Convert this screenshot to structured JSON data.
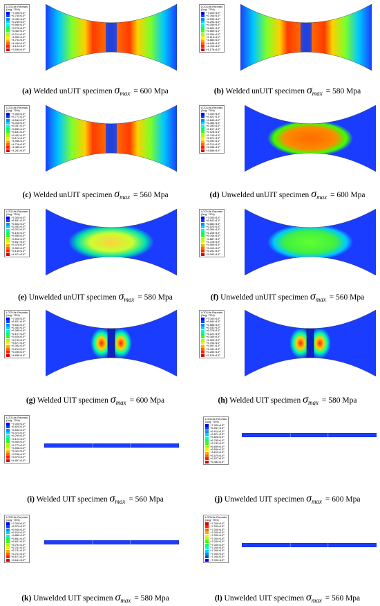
{
  "figure": {
    "legend_title": [
      "LOGLife-Repeats",
      "(Avg: 75%)"
    ],
    "sigma_symbol": "σ",
    "sigma_subscript": "max",
    "panels": [
      {
        "id": "a",
        "label": "(a)",
        "text": "Welded unUIT specimen",
        "stress": "= 600 Mpa",
        "legend": [
          "+7.000×10⁰",
          "+6.745×10⁰",
          "+6.490×10⁰",
          "+6.235×10⁰",
          "+5.980×10⁰",
          "+5.725×10⁰",
          "+5.469×10⁰",
          "+5.214×10⁰",
          "+4.959×10⁰",
          "+4.704×10⁰",
          "+4.449×10⁰",
          "+4.194×10⁰",
          "+3.939×10⁰"
        ]
      },
      {
        "id": "b",
        "label": "(b)",
        "text": "Welded unUIT specimen",
        "stress": "= 580 Mpa",
        "legend": [
          "+7.000×10⁰",
          "+6.765×10⁰",
          "+6.530×10⁰",
          "+6.294×10⁰",
          "+6.059×10⁰",
          "+5.824×10⁰",
          "+5.589×10⁰",
          "+5.354×10⁰",
          "+5.119×10⁰",
          "+4.883×10⁰",
          "+4.648×10⁰",
          "+4.413×10⁰",
          "+4.178×10⁰"
        ]
      },
      {
        "id": "c",
        "label": "(c)",
        "text": "Welded unUIT specimen",
        "stress": "= 560 Mpa",
        "legend": [
          "+7.000×10⁰",
          "+6.772×10⁰",
          "+6.544×10⁰",
          "+6.315×10⁰",
          "+6.087×10⁰",
          "+5.859×10⁰",
          "+5.631×10⁰",
          "+5.402×10⁰",
          "+5.174×10⁰",
          "+4.946×10⁰",
          "+4.718×10⁰",
          "+4.489×10⁰",
          "+4.261×10⁰"
        ]
      },
      {
        "id": "d",
        "label": "(d)",
        "text": "Unwelded unUIT specimen",
        "stress": "= 600 Mpa",
        "legend": [
          "+7.000×10⁰",
          "+6.821×10⁰",
          "+6.643×10⁰",
          "+6.464×10⁰",
          "+6.285×10⁰",
          "+6.107×10⁰",
          "+5.928×10⁰",
          "+5.749×10⁰",
          "+5.571×10⁰",
          "+5.392×10⁰",
          "+5.213×10⁰",
          "+5.035×10⁰",
          "+4.856×10⁰"
        ]
      },
      {
        "id": "e",
        "label": "(e)",
        "text": "Unwelded unUIT specimen",
        "stress": "= 580 Mpa",
        "legend": [
          "+7.000×10⁰",
          "+6.831×10⁰",
          "+6.662×10⁰",
          "+6.493×10⁰",
          "+6.323×10⁰",
          "+6.154×10⁰",
          "+5.985×10⁰",
          "+5.816×10⁰",
          "+5.647×10⁰",
          "+5.478×10⁰",
          "+5.309×10⁰",
          "+5.140×10⁰",
          "+4.971×10⁰"
        ]
      },
      {
        "id": "f",
        "label": "(f)",
        "text": "Unwelded unUIT specimen",
        "stress": "= 560 Mpa",
        "legend": [
          "+7.000×10⁰",
          "+6.841×10⁰",
          "+6.682×10⁰",
          "+6.523×10⁰",
          "+6.364×10⁰",
          "+6.205×10⁰",
          "+6.046×10⁰",
          "+5.887×10⁰",
          "+5.728×10⁰",
          "+5.569×10⁰",
          "+5.410×10⁰",
          "+5.251×10⁰",
          "+5.092×10⁰"
        ]
      },
      {
        "id": "g",
        "label": "(g)",
        "text": "Welded UIT specimen",
        "stress": "= 600 Mpa",
        "legend": [
          "+7.000×10⁰",
          "+6.821×10⁰",
          "+6.643×10⁰",
          "+6.464×10⁰",
          "+6.285×10⁰",
          "+6.107×10⁰",
          "+5.928×10⁰",
          "+5.749×10⁰",
          "+5.571×10⁰",
          "+5.392×10⁰",
          "+5.213×10⁰",
          "+5.035×10⁰",
          "+4.856×10⁰"
        ]
      },
      {
        "id": "h",
        "label": "(h)",
        "text": "Welded UIT specimen",
        "stress": "= 580 Mpa",
        "legend": [
          "+7.000×10⁰",
          "+6.844×10⁰",
          "+6.688×10⁰",
          "+6.532×10⁰",
          "+6.376×10⁰",
          "+6.221×10⁰",
          "+6.065×10⁰",
          "+5.909×10⁰",
          "+5.753×10⁰",
          "+5.597×10⁰",
          "+5.441×10⁰",
          "+5.285×10⁰",
          "+5.129×10⁰"
        ]
      },
      {
        "id": "i",
        "label": "(i)",
        "text": "Welded UIT specimen",
        "stress": "= 560 Mpa",
        "legend": [
          "+7.000×10⁰",
          "+6.825×10⁰",
          "+6.650×10⁰",
          "+6.474×10⁰",
          "+6.299×10⁰",
          "+6.124×10⁰",
          "+5.949×10⁰",
          "+5.773×10⁰",
          "+5.598×10⁰",
          "+5.423×10⁰",
          "+5.248×10⁰",
          "+5.073×10⁰",
          "+4.897×10⁰"
        ]
      },
      {
        "id": "j",
        "label": "(j)",
        "text": "Unwelded UIT specimen",
        "stress": "= 600 Mpa",
        "legend": [
          "+7.000×10⁰",
          "+6.957×10⁰",
          "+6.914×10⁰",
          "+6.871×10⁰",
          "+6.828×10⁰",
          "+6.785×10⁰",
          "+6.742×10⁰",
          "+6.699×10⁰",
          "+6.656×10⁰",
          "+6.613×10⁰",
          "+6.570×10⁰",
          "+6.527×10⁰",
          "+6.484×10⁰"
        ]
      },
      {
        "id": "k",
        "label": "(k)",
        "text": "Unwelded UIT specimen",
        "stress": "= 580 Mpa",
        "legend": [
          "+7.000×10⁰",
          "+6.970×10⁰",
          "+6.940×10⁰",
          "+6.910×10⁰",
          "+6.880×10⁰",
          "+6.851×10⁰",
          "+6.821×10⁰",
          "+6.791×10⁰",
          "+6.761×10⁰",
          "+6.731×10⁰",
          "+6.701×10⁰",
          "+6.671×10⁰",
          "+6.641×10⁰"
        ]
      },
      {
        "id": "l",
        "label": "(l)",
        "text": "Unwelded UIT specimen",
        "stress": "= 560 Mpa",
        "legend": [
          "+7.000×10⁰",
          "+7.000×10⁰",
          "+7.000×10⁰",
          "+7.000×10⁰",
          "+7.000×10⁰",
          "+7.000×10⁰",
          "+7.000×10⁰",
          "+7.000×10⁰",
          "+7.000×10⁰",
          "+7.000×10⁰",
          "+7.000×10⁰",
          "+7.000×10⁰",
          "+7.000×10⁰"
        ]
      }
    ],
    "legend_colors": [
      "#0000ff",
      "#0047ff",
      "#008eff",
      "#00d5ff",
      "#00ffc8",
      "#00ff6a",
      "#3cff00",
      "#aaff00",
      "#ffee00",
      "#ffaa00",
      "#ff6600",
      "#ff2200",
      "#dd0000"
    ],
    "legend_colors_reversed": [
      "#dd0000",
      "#ff2200",
      "#ff6600",
      "#ffaa00",
      "#ffee00",
      "#aaff00",
      "#3cff00",
      "#00ff6a",
      "#00ffc8",
      "#00d5ff",
      "#008eff",
      "#0047ff",
      "#0000ff"
    ]
  }
}
